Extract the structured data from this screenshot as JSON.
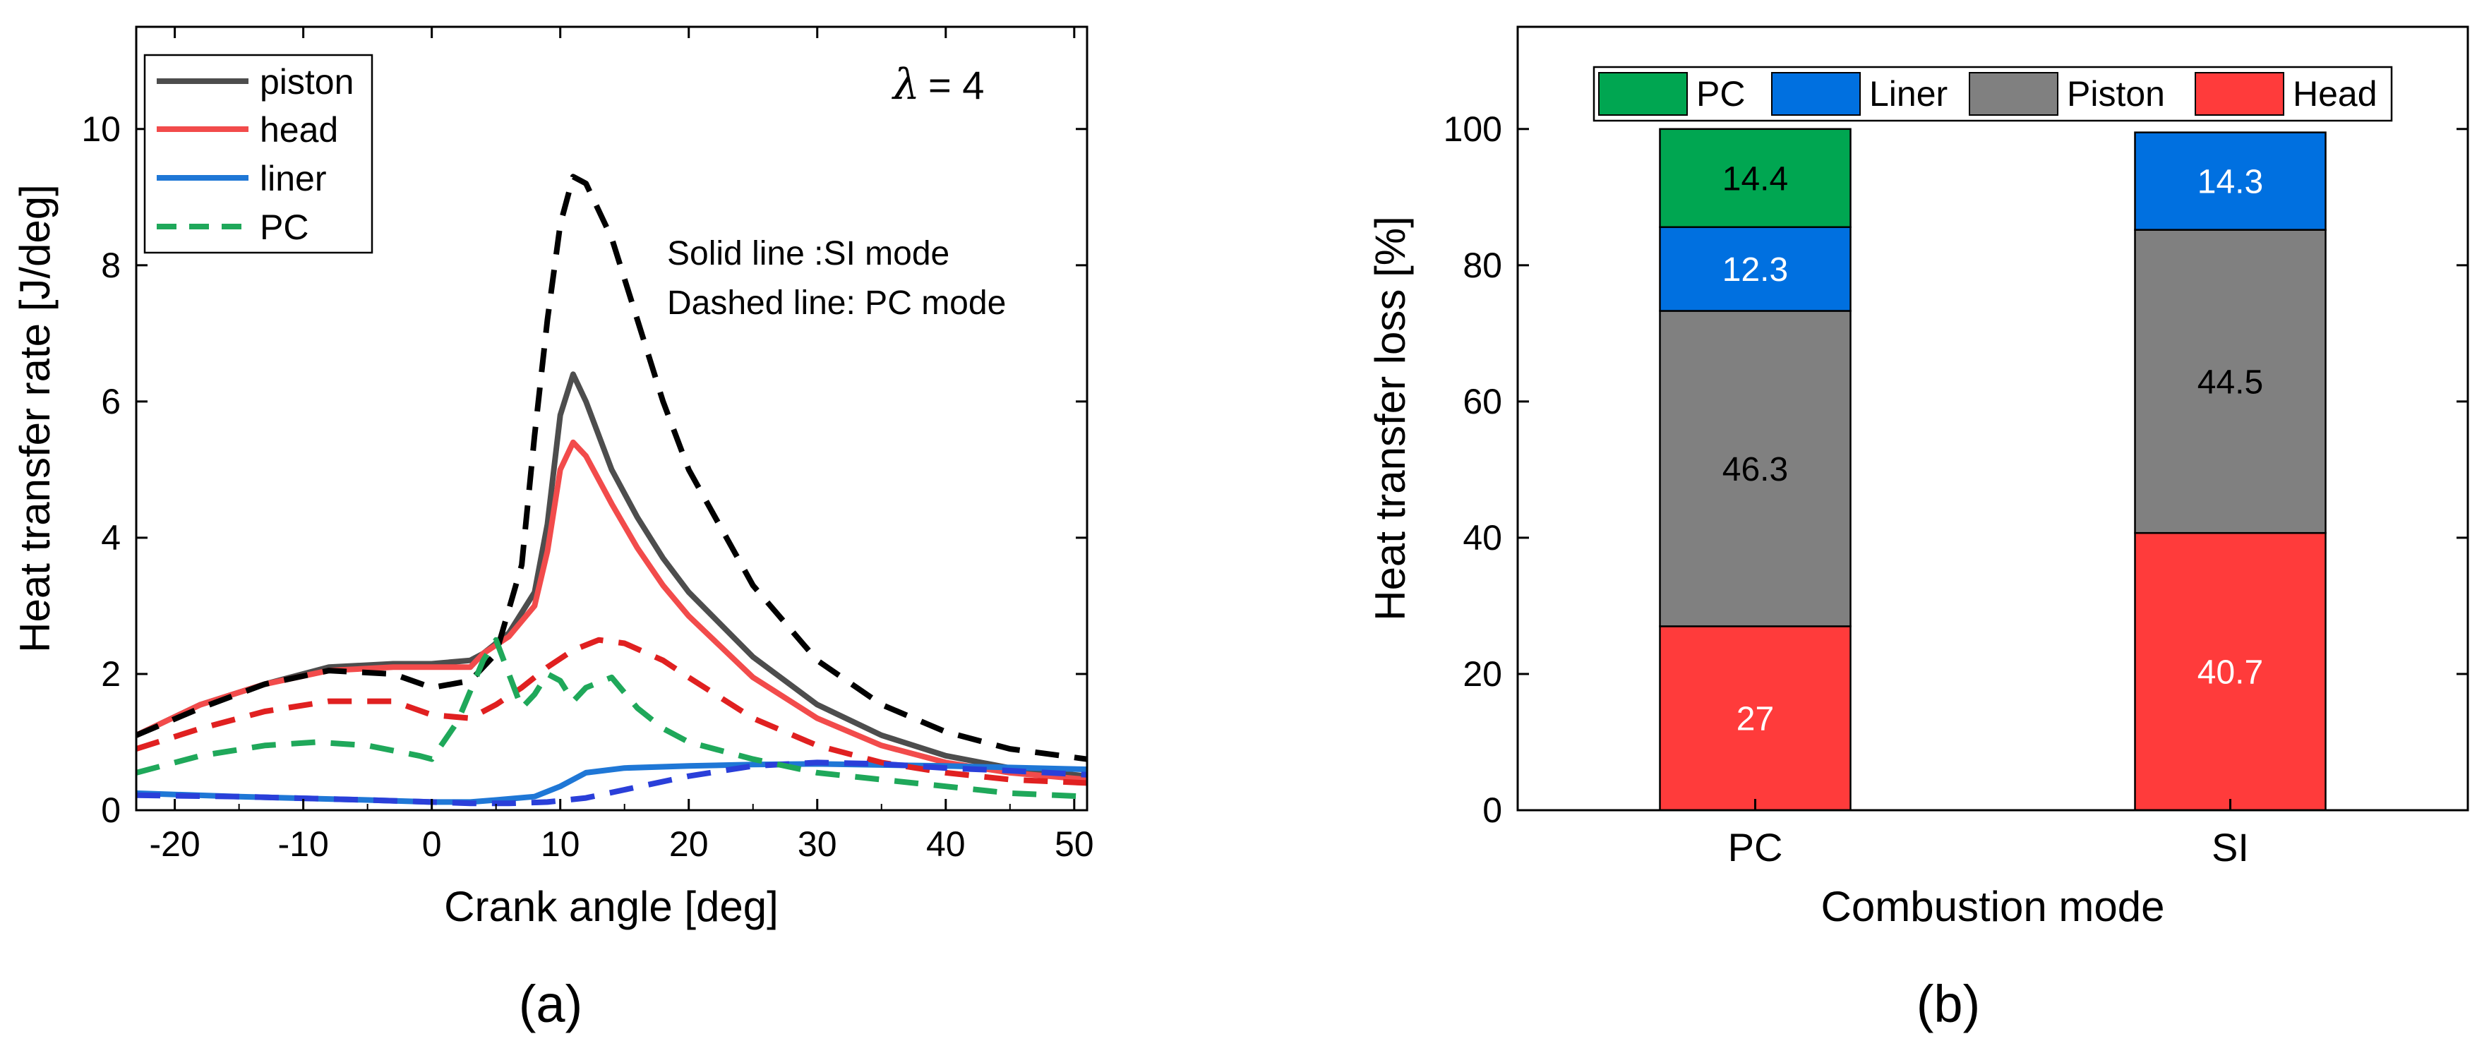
{
  "chart_data": [
    {
      "type": "line",
      "panel": "a",
      "caption": "(a)",
      "xlabel": "Crank angle [deg]",
      "ylabel": "Heat transfer rate [J/deg]",
      "xlim": [
        -23,
        51
      ],
      "ylim": [
        0,
        11.5
      ],
      "xticks": [
        -20,
        -10,
        0,
        10,
        20,
        30,
        40,
        50
      ],
      "yticks": [
        0,
        2,
        4,
        6,
        8,
        10
      ],
      "xtick_labels": [
        "-20",
        "-10",
        "0",
        "10",
        "20",
        "30",
        "40",
        "50"
      ],
      "ytick_labels": [
        "0",
        "2",
        "4",
        "6",
        "8",
        "10"
      ],
      "lambda_symbol": "λ",
      "lambda_value": "= 4",
      "note_solid": "Solid line :SI mode",
      "note_dashed": "Dashed line: PC mode",
      "legend": [
        {
          "label": "piston",
          "color": "#4d4d4d",
          "style": "solid"
        },
        {
          "label": "head",
          "color": "#f24b4b",
          "style": "solid"
        },
        {
          "label": "liner",
          "color": "#1f77d6",
          "style": "solid"
        },
        {
          "label": "PC",
          "color": "#1fa85a",
          "style": "dashed"
        }
      ],
      "series": [
        {
          "name": "piston (SI)",
          "color": "#4d4d4d",
          "style": "solid",
          "x": [
            -23,
            -18,
            -13,
            -8,
            -3,
            0,
            3,
            4,
            6,
            8,
            9,
            10,
            11,
            12,
            14,
            16,
            18,
            20,
            25,
            30,
            35,
            40,
            45,
            51
          ],
          "y": [
            1.1,
            1.55,
            1.85,
            2.1,
            2.15,
            2.15,
            2.2,
            2.3,
            2.6,
            3.2,
            4.2,
            5.8,
            6.4,
            6.0,
            5.0,
            4.3,
            3.7,
            3.2,
            2.25,
            1.55,
            1.1,
            0.8,
            0.62,
            0.5
          ]
        },
        {
          "name": "head (SI)",
          "color": "#f24b4b",
          "style": "solid",
          "x": [
            -23,
            -18,
            -13,
            -8,
            -3,
            0,
            3,
            4,
            6,
            8,
            9,
            10,
            11,
            12,
            14,
            16,
            18,
            20,
            25,
            30,
            35,
            40,
            45,
            51
          ],
          "y": [
            1.1,
            1.55,
            1.85,
            2.05,
            2.1,
            2.1,
            2.1,
            2.3,
            2.55,
            3.0,
            3.8,
            5.0,
            5.4,
            5.2,
            4.5,
            3.85,
            3.3,
            2.85,
            1.95,
            1.35,
            0.95,
            0.7,
            0.55,
            0.45
          ]
        },
        {
          "name": "liner (SI)",
          "color": "#1f77d6",
          "style": "solid",
          "x": [
            -23,
            -15,
            -5,
            0,
            3,
            5,
            8,
            10,
            12,
            15,
            20,
            25,
            30,
            40,
            51
          ],
          "y": [
            0.25,
            0.2,
            0.15,
            0.12,
            0.12,
            0.15,
            0.2,
            0.35,
            0.55,
            0.62,
            0.65,
            0.67,
            0.68,
            0.65,
            0.6
          ]
        },
        {
          "name": "piston (PC)",
          "color": "#000000",
          "style": "dashed",
          "x": [
            -23,
            -18,
            -13,
            -8,
            -3,
            0,
            3,
            5,
            7,
            8,
            9,
            10,
            11,
            12,
            14,
            16,
            18,
            20,
            25,
            30,
            35,
            40,
            45,
            51
          ],
          "y": [
            1.1,
            1.5,
            1.85,
            2.05,
            2.0,
            1.8,
            1.9,
            2.3,
            3.6,
            5.5,
            7.2,
            8.6,
            9.3,
            9.2,
            8.4,
            7.2,
            6.0,
            5.0,
            3.3,
            2.2,
            1.55,
            1.15,
            0.9,
            0.75
          ]
        },
        {
          "name": "head (PC)",
          "color": "#e02020",
          "style": "dashed",
          "x": [
            -23,
            -18,
            -13,
            -8,
            -3,
            0,
            3,
            5,
            7,
            9,
            11,
            13,
            15,
            18,
            20,
            25,
            30,
            35,
            40,
            45,
            51
          ],
          "y": [
            0.9,
            1.2,
            1.45,
            1.6,
            1.6,
            1.4,
            1.35,
            1.55,
            1.8,
            2.1,
            2.35,
            2.5,
            2.45,
            2.2,
            1.95,
            1.35,
            0.95,
            0.7,
            0.55,
            0.45,
            0.4
          ]
        },
        {
          "name": "liner (PC)",
          "color": "#2a3fd9",
          "style": "dashed",
          "x": [
            -23,
            -15,
            -5,
            0,
            3,
            6,
            9,
            12,
            15,
            20,
            25,
            30,
            35,
            40,
            45,
            51
          ],
          "y": [
            0.22,
            0.2,
            0.15,
            0.12,
            0.1,
            0.1,
            0.12,
            0.18,
            0.3,
            0.5,
            0.65,
            0.7,
            0.68,
            0.62,
            0.58,
            0.52
          ]
        },
        {
          "name": "PC",
          "color": "#1fa85a",
          "style": "dashed",
          "x": [
            -23,
            -18,
            -13,
            -9,
            -5,
            -1,
            0,
            2,
            4,
            5,
            6,
            7,
            8,
            9,
            10,
            11,
            12,
            14,
            16,
            18,
            20,
            25,
            30,
            35,
            40,
            45,
            51
          ],
          "y": [
            0.55,
            0.8,
            0.95,
            1.0,
            0.95,
            0.8,
            0.75,
            1.3,
            2.2,
            2.5,
            2.0,
            1.5,
            1.7,
            2.0,
            1.9,
            1.6,
            1.8,
            1.95,
            1.5,
            1.2,
            1.0,
            0.75,
            0.55,
            0.45,
            0.35,
            0.25,
            0.2
          ]
        }
      ]
    },
    {
      "type": "bar",
      "stacked": true,
      "panel": "b",
      "caption": "(b)",
      "xlabel": "Combustion mode",
      "ylabel": "Heat transfer loss [%]",
      "ylim": [
        0,
        115
      ],
      "yticks": [
        0,
        20,
        40,
        60,
        80,
        100
      ],
      "ytick_labels": [
        "0",
        "20",
        "40",
        "60",
        "80",
        "100"
      ],
      "categories": [
        "PC",
        "SI"
      ],
      "legend": [
        {
          "label": "PC",
          "color": "#00a651"
        },
        {
          "label": "Liner",
          "color": "#0070e0"
        },
        {
          "label": "Piston",
          "color": "#808080"
        },
        {
          "label": "Head",
          "color": "#ff3b3b"
        }
      ],
      "series": [
        {
          "name": "Head",
          "color": "#ff3b3b",
          "values": [
            27,
            40.7
          ],
          "labels": [
            "27",
            "40.7"
          ],
          "label_color": "#ffffff"
        },
        {
          "name": "Piston",
          "color": "#808080",
          "values": [
            46.3,
            44.5
          ],
          "labels": [
            "46.3",
            "44.5"
          ],
          "label_color": "#000000"
        },
        {
          "name": "Liner",
          "color": "#0070e0",
          "values": [
            12.3,
            14.3
          ],
          "labels": [
            "12.3",
            "14.3"
          ],
          "label_color": "#ffffff"
        },
        {
          "name": "PC",
          "color": "#00a651",
          "values": [
            14.4,
            0
          ],
          "labels": [
            "14.4",
            ""
          ],
          "label_color": "#000000"
        }
      ]
    }
  ]
}
